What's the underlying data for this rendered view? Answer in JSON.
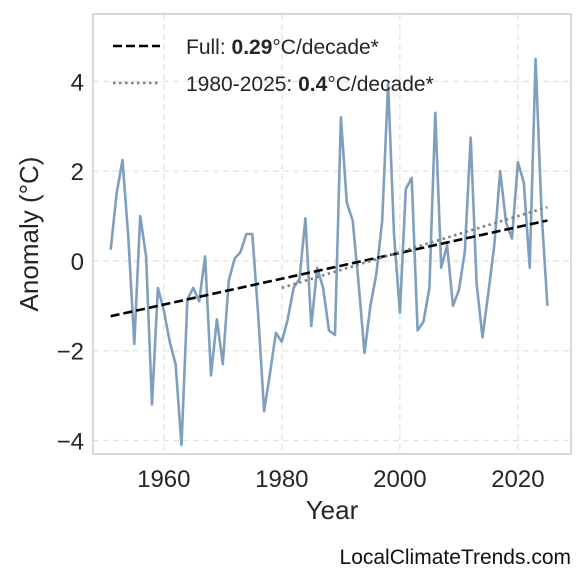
{
  "chart_data": {
    "type": "line",
    "xlabel": "Year",
    "ylabel": "Anomaly (°C)",
    "xlim": [
      1948,
      2029
    ],
    "ylim": [
      -4.3,
      5.5
    ],
    "xticks": [
      1960,
      1980,
      2000,
      2020
    ],
    "yticks": [
      -4,
      -2,
      0,
      2,
      4
    ],
    "ytick_labels": [
      "−4",
      "−2",
      "0",
      "2",
      "4"
    ],
    "grid": true,
    "legend_position": "top-left",
    "series": [
      {
        "role": "observed",
        "color": "#7f9fbf",
        "style": "solid",
        "x": [
          1951,
          1952,
          1953,
          1954,
          1955,
          1956,
          1957,
          1958,
          1959,
          1960,
          1961,
          1962,
          1963,
          1964,
          1965,
          1966,
          1967,
          1968,
          1969,
          1970,
          1971,
          1972,
          1973,
          1974,
          1975,
          1976,
          1977,
          1978,
          1979,
          1980,
          1981,
          1982,
          1983,
          1984,
          1985,
          1986,
          1987,
          1988,
          1989,
          1990,
          1991,
          1992,
          1993,
          1994,
          1995,
          1996,
          1997,
          1998,
          1999,
          2000,
          2001,
          2002,
          2003,
          2004,
          2005,
          2006,
          2007,
          2008,
          2009,
          2010,
          2011,
          2012,
          2013,
          2014,
          2015,
          2016,
          2017,
          2018,
          2019,
          2020,
          2021,
          2022,
          2023,
          2024,
          2025
        ],
        "y": [
          0.25,
          1.5,
          2.25,
          0.5,
          -1.85,
          1.0,
          0.1,
          -3.2,
          -0.6,
          -1.1,
          -1.8,
          -2.3,
          -4.1,
          -0.85,
          -0.6,
          -0.9,
          0.1,
          -2.55,
          -1.3,
          -2.3,
          -0.45,
          0.05,
          0.2,
          0.6,
          0.6,
          -1.2,
          -3.35,
          -2.5,
          -1.6,
          -1.8,
          -1.3,
          -0.6,
          -0.4,
          0.95,
          -1.45,
          -0.15,
          -0.6,
          -1.55,
          -1.65,
          3.2,
          1.3,
          0.9,
          -0.5,
          -2.05,
          -1.0,
          -0.3,
          0.9,
          3.95,
          0.6,
          -1.15,
          1.6,
          1.85,
          -1.55,
          -1.35,
          -0.6,
          3.3,
          -0.15,
          0.35,
          -1.0,
          -0.65,
          0.2,
          2.75,
          -0.5,
          -1.7,
          -0.7,
          0.35,
          2.0,
          0.85,
          0.5,
          2.2,
          1.75,
          -0.15,
          4.5,
          1.1,
          -1.0
        ]
      },
      {
        "name": "Full",
        "role": "trend-full",
        "color": "#000000",
        "style": "dashed",
        "x": [
          1951,
          2025
        ],
        "y": [
          -1.23,
          0.9
        ]
      },
      {
        "name": "1980-2025",
        "role": "trend-recent",
        "color": "#808080",
        "style": "dotted",
        "x": [
          1980,
          2025
        ],
        "y": [
          -0.6,
          1.2
        ]
      }
    ],
    "legend": [
      {
        "prefix": "Full: ",
        "value": "0.29",
        "suffix": "°C/decade*",
        "color": "#000000",
        "style": "dashed"
      },
      {
        "prefix": "1980-2025: ",
        "value": "0.4",
        "suffix": "°C/decade*",
        "color": "#808080",
        "style": "dotted"
      }
    ]
  },
  "watermark": "LocalClimateTrends.com"
}
